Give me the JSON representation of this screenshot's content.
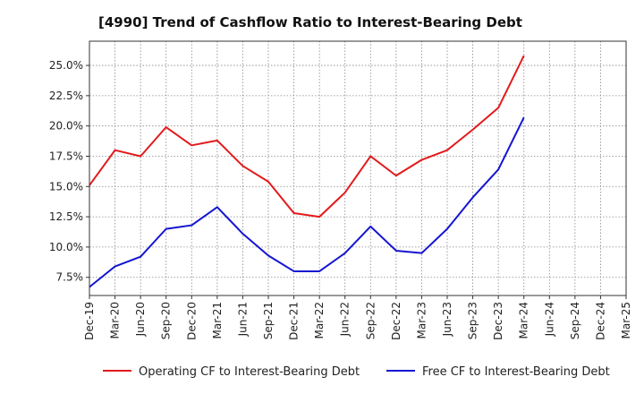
{
  "chart_data": {
    "type": "line",
    "title": "[4990]  Trend of Cashflow Ratio to Interest-Bearing Debt",
    "xlabel": "",
    "ylabel": "",
    "x": [
      "Dec-19",
      "Mar-20",
      "Jun-20",
      "Sep-20",
      "Dec-20",
      "Mar-21",
      "Jun-21",
      "Sep-21",
      "Dec-21",
      "Mar-22",
      "Jun-22",
      "Sep-22",
      "Dec-22",
      "Mar-23",
      "Jun-23",
      "Sep-23",
      "Dec-23",
      "Mar-24",
      "Jun-24",
      "Sep-24",
      "Dec-24",
      "Mar-25"
    ],
    "ylim": [
      6.0,
      27.0
    ],
    "yticks": [
      7.5,
      10.0,
      12.5,
      15.0,
      17.5,
      20.0,
      22.5,
      25.0
    ],
    "ytick_labels": [
      "7.5%",
      "10.0%",
      "12.5%",
      "15.0%",
      "17.5%",
      "20.0%",
      "22.5%",
      "25.0%"
    ],
    "grid": true,
    "legend_position": "bottom",
    "series": [
      {
        "name": "Operating CF to Interest-Bearing Debt",
        "color": "#e31a1c",
        "values": [
          15.1,
          18.0,
          17.5,
          19.9,
          18.4,
          18.8,
          16.7,
          15.4,
          12.8,
          12.5,
          14.5,
          17.5,
          15.9,
          17.2,
          18.0,
          19.7,
          21.5,
          25.8,
          null,
          null,
          null,
          null
        ]
      },
      {
        "name": "Free CF to Interest-Bearing Debt",
        "color": "#1414d2",
        "values": [
          6.7,
          8.4,
          9.2,
          11.5,
          11.8,
          13.3,
          11.1,
          9.3,
          8.0,
          8.0,
          9.5,
          11.7,
          9.7,
          9.5,
          11.5,
          14.1,
          16.4,
          20.7,
          null,
          null,
          null,
          null
        ]
      }
    ]
  }
}
